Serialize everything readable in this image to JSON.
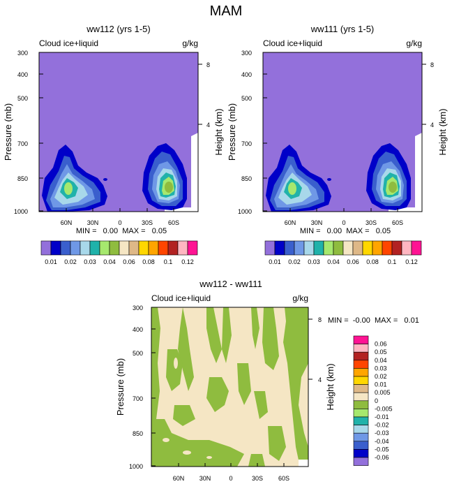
{
  "main_title": "MAM",
  "colors": [
    "#9370db",
    "#0000c8",
    "#3a5fcd",
    "#6f98e6",
    "#a8d8ea",
    "#20b2aa",
    "#a6e86e",
    "#8fbc3f",
    "#f5e6c4",
    "#deb887",
    "#ffd700",
    "#ffa500",
    "#ff4500",
    "#b22222",
    "#ffb6c1",
    "#ff1493"
  ],
  "chart_data": [
    {
      "type": "heatmap",
      "title": "ww112 (yrs 1-5)",
      "left_label": "Cloud ice+liquid",
      "right_label": "g/kg",
      "ylabel": "Pressure (mb)",
      "ylabel_right": "Height (km)",
      "ylim": [
        1000,
        300
      ],
      "y_ticks": [
        "300",
        "400",
        "500",
        "700",
        "850",
        "1000"
      ],
      "y_ticks_right": [
        "8",
        "4"
      ],
      "x_ticks": [
        "60N",
        "30N",
        "0",
        "30S",
        "60S"
      ],
      "stats": "MIN =   0.00  MAX =   0.05",
      "colorbar_labels": [
        "0.01",
        "0.02",
        "0.03",
        "0.04",
        "0.06",
        "0.08",
        "0.1",
        "0.12"
      ]
    },
    {
      "type": "heatmap",
      "title": "ww111 (yrs 1-5)",
      "left_label": "Cloud ice+liquid",
      "right_label": "g/kg",
      "ylabel": "Pressure (mb)",
      "ylabel_right": "Height (km)",
      "ylim": [
        1000,
        300
      ],
      "y_ticks": [
        "300",
        "400",
        "500",
        "700",
        "850",
        "1000"
      ],
      "y_ticks_right": [
        "8",
        "4"
      ],
      "x_ticks": [
        "60N",
        "30N",
        "0",
        "30S",
        "60S"
      ],
      "stats": "MIN =   0.00  MAX =   0.05",
      "colorbar_labels": [
        "0.01",
        "0.02",
        "0.03",
        "0.04",
        "0.06",
        "0.08",
        "0.1",
        "0.12"
      ]
    },
    {
      "type": "heatmap",
      "title": "ww112 - ww111",
      "left_label": "Cloud ice+liquid",
      "right_label": "g/kg",
      "ylabel": "Pressure (mb)",
      "ylabel_right": "Height (km)",
      "ylim": [
        1000,
        300
      ],
      "y_ticks": [
        "300",
        "400",
        "500",
        "700",
        "850",
        "1000"
      ],
      "y_ticks_right": [
        "8",
        "4"
      ],
      "x_ticks": [
        "60N",
        "30N",
        "0",
        "30S",
        "60S"
      ],
      "stats": "MIN =  -0.00  MAX =   0.01",
      "colorbar_labels": [
        "0.06",
        "0.05",
        "0.04",
        "0.03",
        "0.02",
        "0.01",
        "0.005",
        "0",
        "-0.005",
        "-0.01",
        "-0.02",
        "-0.03",
        "-0.04",
        "-0.05",
        "-0.06"
      ]
    }
  ]
}
